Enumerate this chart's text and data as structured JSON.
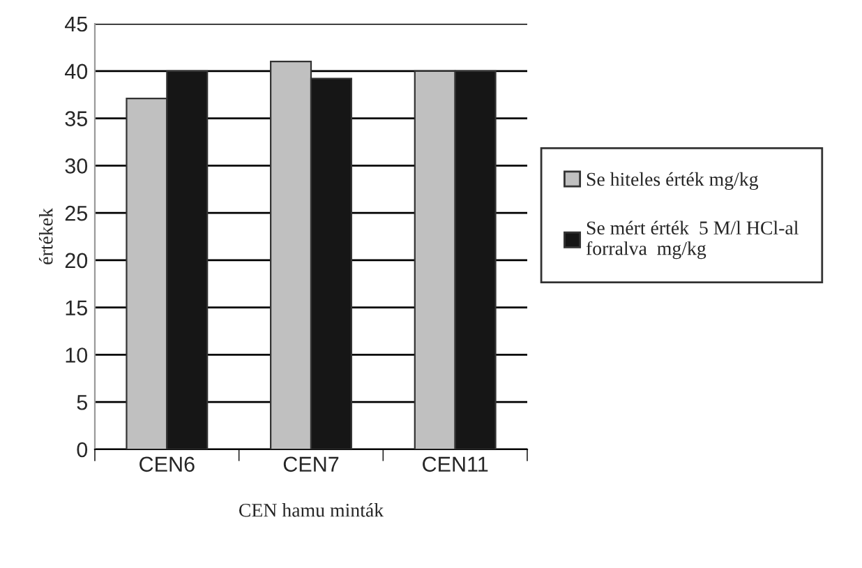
{
  "chart_data": {
    "type": "bar",
    "xlabel": "CEN hamu minták",
    "ylabel": "értékek",
    "categories": [
      "CEN6",
      "CEN7",
      "CEN11"
    ],
    "series": [
      {
        "name": "Se hiteles érték mg/kg",
        "color": "#c0c0c0",
        "values": [
          37.1,
          41,
          40
        ]
      },
      {
        "name": "Se mért érték  5 M/l HCl-al\nforralva  mg/kg",
        "color": "#161616",
        "values": [
          40,
          39.2,
          40
        ]
      }
    ],
    "ylim": [
      0,
      45
    ],
    "yticks": [
      0,
      5,
      10,
      15,
      20,
      25,
      30,
      35,
      40,
      45
    ],
    "grid": "y",
    "legend": "right"
  }
}
